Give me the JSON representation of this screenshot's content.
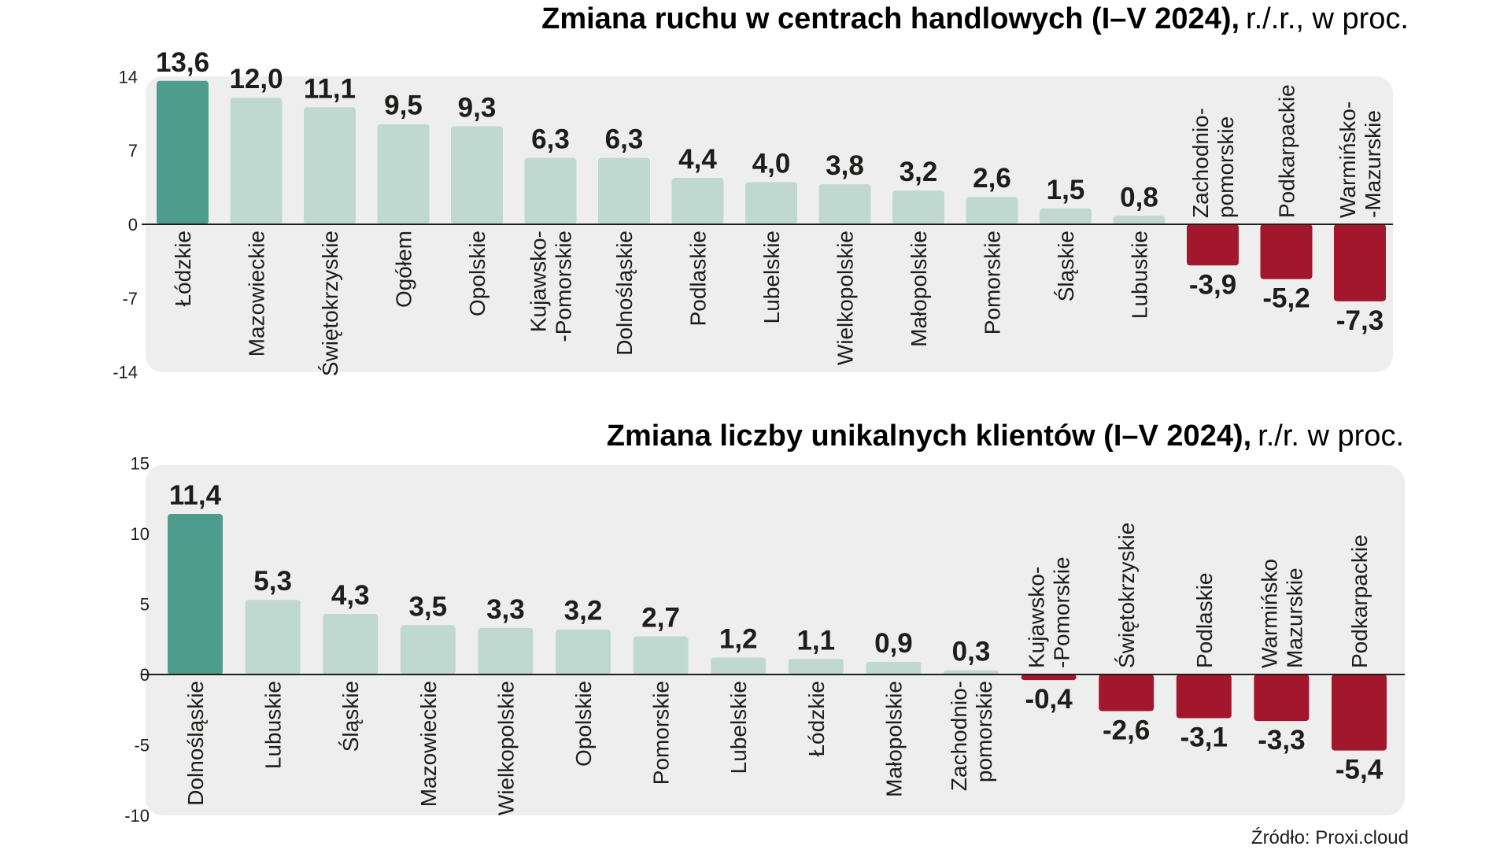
{
  "colors": {
    "highlight": "#4e9c8c",
    "positive": "#bfd9d1",
    "negative": "#a3172d",
    "panel": "#eeeeee",
    "zero_line": "#1d1d1b"
  },
  "source": "Źródło: Proxi.cloud",
  "chart_data": [
    {
      "type": "bar",
      "title": "Zmiana ruchu w centrach handlowych (I–V 2024),",
      "subtitle": "r./.r., w proc.",
      "ylim": [
        -14,
        14
      ],
      "yticks": [
        14,
        7,
        0,
        -7,
        -14
      ],
      "highlight_index": 0,
      "bars": [
        {
          "label": [
            "Łódzkie"
          ],
          "value": 13.6,
          "display": "13,6"
        },
        {
          "label": [
            "Mazowieckie"
          ],
          "value": 12.0,
          "display": "12,0"
        },
        {
          "label": [
            "Świętokrzyskie"
          ],
          "value": 11.1,
          "display": "11,1"
        },
        {
          "label": [
            "Ogółem"
          ],
          "value": 9.5,
          "display": "9,5"
        },
        {
          "label": [
            "Opolskie"
          ],
          "value": 9.3,
          "display": "9,3"
        },
        {
          "label": [
            "Kujawsko-",
            "-Pomorskie"
          ],
          "value": 6.3,
          "display": "6,3"
        },
        {
          "label": [
            "Dolnośląskie"
          ],
          "value": 6.3,
          "display": "6,3"
        },
        {
          "label": [
            "Podlaskie"
          ],
          "value": 4.4,
          "display": "4,4"
        },
        {
          "label": [
            "Lubelskie"
          ],
          "value": 4.0,
          "display": "4,0"
        },
        {
          "label": [
            "Wielkopolskie"
          ],
          "value": 3.8,
          "display": "3,8"
        },
        {
          "label": [
            "Małopolskie"
          ],
          "value": 3.2,
          "display": "3,2"
        },
        {
          "label": [
            "Pomorskie"
          ],
          "value": 2.6,
          "display": "2,6"
        },
        {
          "label": [
            "Śląskie"
          ],
          "value": 1.5,
          "display": "1,5"
        },
        {
          "label": [
            "Lubuskie"
          ],
          "value": 0.8,
          "display": "0,8"
        },
        {
          "label": [
            "Zachodnio-",
            "pomorskie"
          ],
          "value": -3.9,
          "display": "-3,9"
        },
        {
          "label": [
            "Podkarpackie"
          ],
          "value": -5.2,
          "display": "-5,2"
        },
        {
          "label": [
            "Warmińsko-",
            "-Mazurskie"
          ],
          "value": -7.3,
          "display": "-7,3"
        }
      ]
    },
    {
      "type": "bar",
      "title": "Zmiana liczby unikalnych klientów (I–V 2024),",
      "subtitle": "r./r. w proc.",
      "ylim": [
        -10,
        15
      ],
      "yticks": [
        15,
        10,
        5,
        0,
        -5,
        -10
      ],
      "highlight_index": 0,
      "bars": [
        {
          "label": [
            "Dolnośląskie"
          ],
          "value": 11.4,
          "display": "11,4"
        },
        {
          "label": [
            "Lubuskie"
          ],
          "value": 5.3,
          "display": "5,3"
        },
        {
          "label": [
            "Śląskie"
          ],
          "value": 4.3,
          "display": "4,3"
        },
        {
          "label": [
            "Mazowieckie"
          ],
          "value": 3.5,
          "display": "3,5"
        },
        {
          "label": [
            "Wielkopolskie"
          ],
          "value": 3.3,
          "display": "3,3"
        },
        {
          "label": [
            "Opolskie"
          ],
          "value": 3.2,
          "display": "3,2"
        },
        {
          "label": [
            "Pomorskie"
          ],
          "value": 2.7,
          "display": "2,7"
        },
        {
          "label": [
            "Lubelskie"
          ],
          "value": 1.2,
          "display": "1,2"
        },
        {
          "label": [
            "Łódzkie"
          ],
          "value": 1.1,
          "display": "1,1"
        },
        {
          "label": [
            "Małopolskie"
          ],
          "value": 0.9,
          "display": "0,9"
        },
        {
          "label": [
            "Zachodnio-",
            "pomorskie"
          ],
          "value": 0.3,
          "display": "0,3"
        },
        {
          "label": [
            "Kujawsko-",
            "-Pomorskie"
          ],
          "value": -0.4,
          "display": "-0,4"
        },
        {
          "label": [
            "Świętokrzyskie"
          ],
          "value": -2.6,
          "display": "-2,6"
        },
        {
          "label": [
            "Podlaskie"
          ],
          "value": -3.1,
          "display": "-3,1"
        },
        {
          "label": [
            "Warmińsko",
            "Mazurskie"
          ],
          "value": -3.3,
          "display": "-3,3"
        },
        {
          "label": [
            "Podkarpackie"
          ],
          "value": -5.4,
          "display": "-5,4"
        }
      ]
    }
  ]
}
